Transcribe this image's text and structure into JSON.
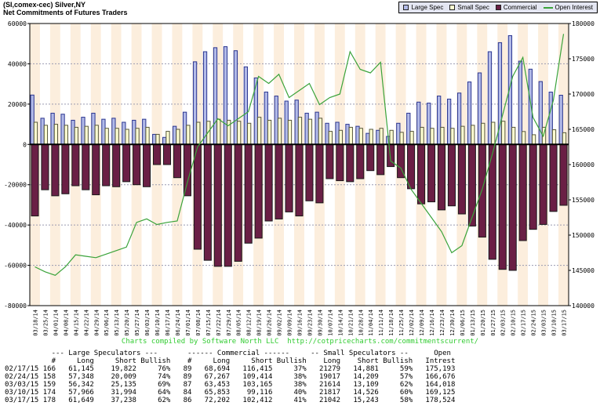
{
  "header": {
    "title": "(SI,comex-cec) Silver,NY",
    "subtitle": "Net Commitments of Futures Traders"
  },
  "legend": {
    "items": [
      {
        "label": "Large Spec",
        "color": "#b2bae8",
        "type": "box"
      },
      {
        "label": "Small Spec",
        "color": "#ffffd2",
        "type": "box"
      },
      {
        "label": "Commercial",
        "color": "#6a1f45",
        "type": "box"
      },
      {
        "label": "Open Interest",
        "color": "#3aa33a",
        "type": "line"
      }
    ]
  },
  "chart_data": {
    "type": "bar",
    "title": "Net Commitments of Futures Traders",
    "categories": [
      "03/18/14",
      "03/25/14",
      "04/01/14",
      "04/08/14",
      "04/15/14",
      "04/22/14",
      "04/29/14",
      "05/06/14",
      "05/13/14",
      "05/20/14",
      "05/27/14",
      "06/03/14",
      "06/10/14",
      "06/17/14",
      "06/24/14",
      "07/01/14",
      "07/08/14",
      "07/15/14",
      "07/22/14",
      "07/29/14",
      "08/05/14",
      "08/12/14",
      "08/19/14",
      "08/26/14",
      "09/02/14",
      "09/09/14",
      "09/16/14",
      "09/23/14",
      "09/30/14",
      "10/07/14",
      "10/14/14",
      "10/21/14",
      "10/28/14",
      "11/04/14",
      "11/11/14",
      "11/18/14",
      "11/25/14",
      "12/02/14",
      "12/09/14",
      "12/16/14",
      "12/23/14",
      "12/30/14",
      "01/06/15",
      "01/13/15",
      "01/20/15",
      "01/27/15",
      "02/03/15",
      "02/10/15",
      "02/17/15",
      "02/24/15",
      "03/03/15",
      "03/10/15",
      "03/17/15"
    ],
    "series": [
      {
        "name": "Large Spec",
        "type": "bar",
        "axis": "left",
        "color": "#b2bae8",
        "border": "#2a3590",
        "values": [
          24500,
          13000,
          15500,
          15000,
          12000,
          13500,
          15500,
          12500,
          13000,
          11000,
          12000,
          12500,
          5000,
          3500,
          9000,
          16000,
          41000,
          46000,
          48000,
          48500,
          46500,
          38500,
          33000,
          26000,
          24000,
          21500,
          22000,
          15500,
          16000,
          10500,
          11000,
          10000,
          9000,
          5500,
          7000,
          4000,
          10500,
          15500,
          21000,
          20500,
          24000,
          22500,
          25500,
          31000,
          35500,
          46000,
          50500,
          54000,
          41323,
          37339,
          31207,
          25972,
          24411
        ]
      },
      {
        "name": "Small Spec",
        "type": "bar",
        "axis": "left",
        "color": "#ffffd2",
        "border": "#55553a",
        "values": [
          11000,
          9500,
          10000,
          9500,
          8500,
          9000,
          9500,
          8000,
          8000,
          7500,
          8000,
          8500,
          5000,
          6500,
          7500,
          9500,
          11000,
          11500,
          12500,
          12000,
          11500,
          10500,
          13500,
          12000,
          13000,
          12000,
          13500,
          12500,
          13000,
          6500,
          7000,
          8500,
          8000,
          7500,
          8000,
          7000,
          6000,
          6500,
          8500,
          8000,
          8500,
          8000,
          9000,
          9500,
          10500,
          11000,
          11500,
          8500,
          6398,
          4808,
          8505,
          7291,
          5799
        ]
      },
      {
        "name": "Commercial",
        "type": "bar",
        "axis": "left",
        "color": "#6a1f45",
        "border": "#1a1a1a",
        "values": [
          -35500,
          -22500,
          -25500,
          -24500,
          -20500,
          -22500,
          -25000,
          -20500,
          -21000,
          -18500,
          -20000,
          -21000,
          -10000,
          -10000,
          -16500,
          -25500,
          -52000,
          -57500,
          -60500,
          -60500,
          -58000,
          -49000,
          -46500,
          -38000,
          -37000,
          -33500,
          -35500,
          -28000,
          -29000,
          -17000,
          -18000,
          -18500,
          -17000,
          -13000,
          -15000,
          -11000,
          -16500,
          -22000,
          -29500,
          -28500,
          -32500,
          -30500,
          -34500,
          -40500,
          -46000,
          -57000,
          -62000,
          -62500,
          -47721,
          -42147,
          -39712,
          -33263,
          -30210
        ]
      },
      {
        "name": "Open Interest",
        "type": "line",
        "axis": "right",
        "color": "#3aa33a",
        "values": [
          145500,
          144800,
          144300,
          145500,
          147200,
          147000,
          146800,
          147300,
          147800,
          148300,
          151800,
          152300,
          151500,
          151800,
          152000,
          157500,
          162500,
          164500,
          166500,
          165500,
          166500,
          167500,
          172500,
          171500,
          172800,
          169500,
          170500,
          171500,
          168500,
          169500,
          170000,
          176000,
          173500,
          173000,
          174500,
          160500,
          159500,
          156500,
          154500,
          152500,
          150500,
          147500,
          148500,
          152500,
          156500,
          161500,
          167000,
          172500,
          175193,
          166676,
          164018,
          169125,
          178524
        ]
      }
    ],
    "left_axis": {
      "min": -80000,
      "max": 60000,
      "step": 20000
    },
    "right_axis": {
      "min": 140000,
      "max": 180000,
      "step": 5000
    },
    "stripe_colors": [
      "#fceedd",
      "#ffffff"
    ],
    "grid": true,
    "legend_position": "top-right"
  },
  "caption": {
    "text": "Charts compiled by Software North LLC  http://cotpricecharts.com/commitmentscurrent/",
    "color": "#33cc33"
  },
  "table": {
    "group_headers": [
      "--- Large Speculators ---",
      "------ Commercial ------",
      "-- Small Speculators --",
      "Open"
    ],
    "column_headers": [
      "#",
      "Long",
      "Short",
      "Bullish",
      "#",
      "Long",
      "Short",
      "Bullish",
      "Long",
      "Short",
      "Bullish",
      "Intrest"
    ],
    "rows": [
      [
        "02/17/15",
        "166",
        "61,145",
        "19,822",
        "76%",
        "89",
        "68,694",
        "116,415",
        "37%",
        "21279",
        "14,881",
        "59%",
        "175,193"
      ],
      [
        "02/24/15",
        "158",
        "57,348",
        "20,009",
        "74%",
        "89",
        "67,267",
        "109,414",
        "38%",
        "19017",
        "14,209",
        "57%",
        "166,676"
      ],
      [
        "03/03/15",
        "159",
        "56,342",
        "25,135",
        "69%",
        "87",
        "63,453",
        "103,165",
        "38%",
        "21614",
        "13,109",
        "62%",
        "164,018"
      ],
      [
        "03/10/15",
        "174",
        "57,966",
        "31,994",
        "64%",
        "84",
        "65,853",
        "99,116",
        "40%",
        "21817",
        "14,526",
        "60%",
        "169,125"
      ],
      [
        "03/17/15",
        "178",
        "61,649",
        "37,238",
        "62%",
        "86",
        "72,202",
        "102,412",
        "41%",
        "21042",
        "15,243",
        "58%",
        "178,524"
      ]
    ]
  }
}
